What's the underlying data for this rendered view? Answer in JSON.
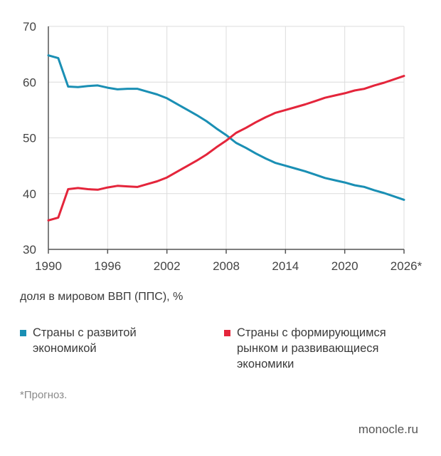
{
  "chart_data": {
    "type": "line",
    "xlabel": "доля в мировом ВВП (ППС), %",
    "ylabel": "",
    "xlim": [
      1990,
      2026
    ],
    "ylim": [
      30,
      70
    ],
    "yticks": [
      30,
      40,
      50,
      60,
      70
    ],
    "xticks": [
      1990,
      1996,
      2002,
      2008,
      2014,
      2020,
      2026
    ],
    "xtick_labels": [
      "1990",
      "1996",
      "2002",
      "2008",
      "2014",
      "2020",
      "2026*"
    ],
    "grid": true,
    "legend_position": "bottom",
    "series": [
      {
        "name": "Страны с развитой\nэкономикой",
        "color": "#1a8fb4",
        "x": [
          1990,
          1991,
          1992,
          1993,
          1994,
          1995,
          1996,
          1997,
          1998,
          1999,
          2000,
          2001,
          2002,
          2003,
          2004,
          2005,
          2006,
          2007,
          2008,
          2009,
          2010,
          2011,
          2012,
          2013,
          2014,
          2015,
          2016,
          2017,
          2018,
          2019,
          2020,
          2021,
          2022,
          2023,
          2024,
          2025,
          2026
        ],
        "values": [
          64.8,
          64.3,
          59.2,
          59.1,
          59.3,
          59.4,
          59.0,
          58.7,
          58.8,
          58.8,
          58.3,
          57.8,
          57.1,
          56.1,
          55.1,
          54.1,
          53.0,
          51.7,
          50.5,
          49.1,
          48.2,
          47.2,
          46.3,
          45.5,
          45.0,
          44.5,
          44.0,
          43.4,
          42.8,
          42.4,
          42.0,
          41.5,
          41.2,
          40.6,
          40.1,
          39.5,
          38.9
        ]
      },
      {
        "name": "Страны с формирующимся\nрынком и развивающиеся\nэкономики",
        "color": "#e4253b",
        "x": [
          1990,
          1991,
          1992,
          1993,
          1994,
          1995,
          1996,
          1997,
          1998,
          1999,
          2000,
          2001,
          2002,
          2003,
          2004,
          2005,
          2006,
          2007,
          2008,
          2009,
          2010,
          2011,
          2012,
          2013,
          2014,
          2015,
          2016,
          2017,
          2018,
          2019,
          2020,
          2021,
          2022,
          2023,
          2024,
          2025,
          2026
        ],
        "values": [
          35.2,
          35.7,
          40.8,
          41.0,
          40.8,
          40.7,
          41.1,
          41.4,
          41.3,
          41.2,
          41.7,
          42.2,
          42.9,
          43.9,
          44.9,
          45.9,
          47.0,
          48.3,
          49.5,
          50.9,
          51.8,
          52.8,
          53.7,
          54.5,
          55.0,
          55.5,
          56.0,
          56.6,
          57.2,
          57.6,
          58.0,
          58.5,
          58.8,
          59.4,
          59.9,
          60.5,
          61.1
        ]
      }
    ]
  },
  "footnote": "*Прогноз.",
  "source": "monocle.ru"
}
